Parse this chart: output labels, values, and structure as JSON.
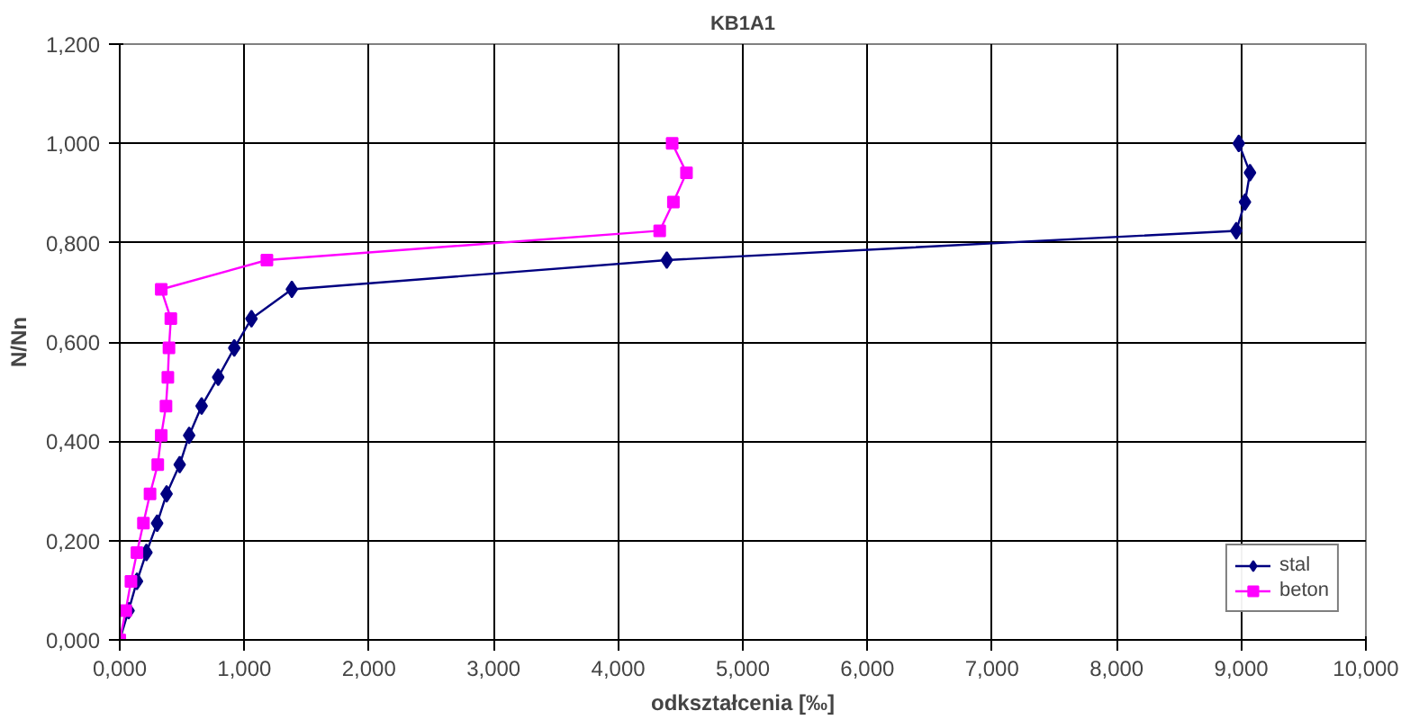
{
  "chart_data": {
    "type": "line",
    "title": "KB1A1",
    "xlabel": "odkształcenia [‰]",
    "ylabel": "N/Nn",
    "series": [
      {
        "name": "stal",
        "color": "#000080",
        "marker": "diamond",
        "x": [
          0,
          0.071,
          0.138,
          0.214,
          0.3,
          0.376,
          0.481,
          0.557,
          0.657,
          0.79,
          0.919,
          1.057,
          1.381,
          4.39,
          8.96,
          9.03,
          9.07,
          8.98
        ],
        "values": [
          0,
          0.059,
          0.118,
          0.176,
          0.235,
          0.294,
          0.353,
          0.412,
          0.471,
          0.529,
          0.588,
          0.647,
          0.706,
          0.765,
          0.824,
          0.882,
          0.941,
          1.0
        ]
      },
      {
        "name": "beton",
        "color": "#ff00ff",
        "marker": "square",
        "x": [
          0,
          0.048,
          0.09,
          0.138,
          0.19,
          0.243,
          0.305,
          0.333,
          0.371,
          0.386,
          0.395,
          0.41,
          0.333,
          1.181,
          4.333,
          4.443,
          4.548,
          4.433
        ],
        "values": [
          0,
          0.059,
          0.118,
          0.176,
          0.235,
          0.294,
          0.353,
          0.412,
          0.471,
          0.529,
          0.588,
          0.647,
          0.706,
          0.765,
          0.824,
          0.882,
          0.941,
          1.0
        ]
      }
    ],
    "xlim": [
      0,
      10
    ],
    "ylim": [
      0,
      1.2
    ],
    "xticks": [
      {
        "value": 0,
        "label": "0,000"
      },
      {
        "value": 1,
        "label": "1,000"
      },
      {
        "value": 2,
        "label": "2,000"
      },
      {
        "value": 3,
        "label": "3,000"
      },
      {
        "value": 4,
        "label": "4,000"
      },
      {
        "value": 5,
        "label": "5,000"
      },
      {
        "value": 6,
        "label": "6,000"
      },
      {
        "value": 7,
        "label": "7,000"
      },
      {
        "value": 8,
        "label": "8,000"
      },
      {
        "value": 9,
        "label": "9,000"
      },
      {
        "value": 10,
        "label": "10,000"
      }
    ],
    "yticks": [
      {
        "value": 0,
        "label": "0,000"
      },
      {
        "value": 0.2,
        "label": "0,200"
      },
      {
        "value": 0.4,
        "label": "0,400"
      },
      {
        "value": 0.6,
        "label": "0,600"
      },
      {
        "value": 0.8,
        "label": "0,800"
      },
      {
        "value": 1.0,
        "label": "1,000"
      },
      {
        "value": 1.2,
        "label": "1,200"
      }
    ],
    "grid": true,
    "legend": "bottom right",
    "line_style": "solid"
  }
}
